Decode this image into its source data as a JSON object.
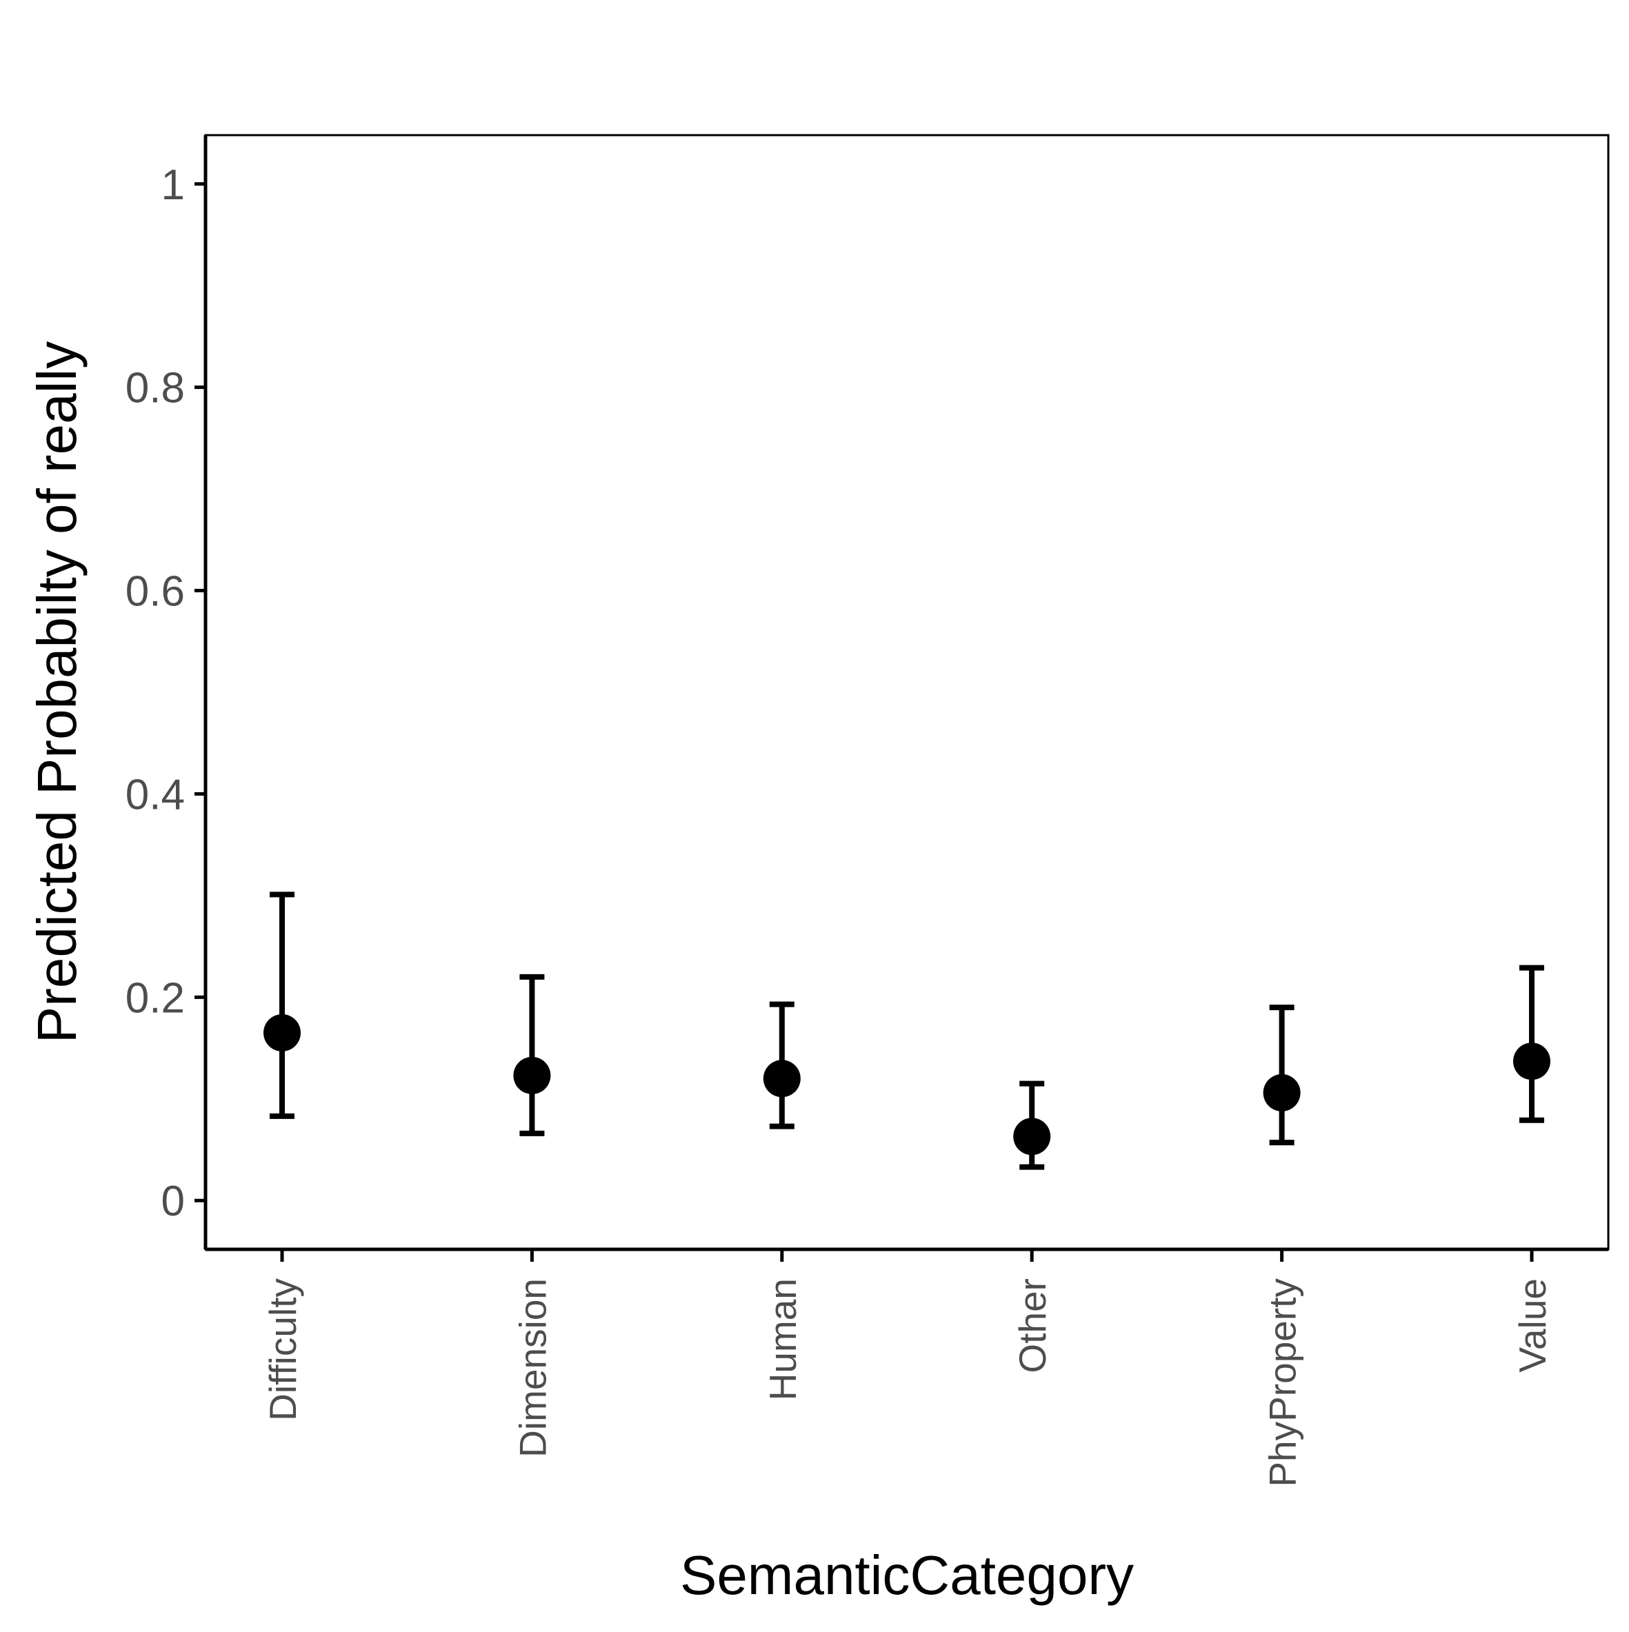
{
  "chart_data": {
    "type": "scatter",
    "title": "",
    "xlabel": "SemanticCategory",
    "ylabel": "Predicted Probabilty of really",
    "categories": [
      "Difficulty",
      "Dimension",
      "Human",
      "Other",
      "PhyProperty",
      "Value"
    ],
    "series": [
      {
        "values": [
          0.165,
          0.123,
          0.12,
          0.063,
          0.106,
          0.137
        ],
        "lower": [
          0.083,
          0.066,
          0.073,
          0.033,
          0.057,
          0.079
        ],
        "upper": [
          0.301,
          0.22,
          0.193,
          0.115,
          0.19,
          0.229
        ]
      }
    ],
    "yticks": [
      0,
      0.2,
      0.4,
      0.6,
      0.8,
      1
    ],
    "ytick_labels": [
      "0",
      "0.2",
      "0.4",
      "0.6",
      "0.8",
      "1"
    ],
    "ylim": [
      -0.048,
      1.048
    ],
    "grid": false,
    "legend": "none",
    "colors": {
      "points": "#000000",
      "axes": "#000000",
      "tick_labels": "#4d4d4d"
    }
  }
}
